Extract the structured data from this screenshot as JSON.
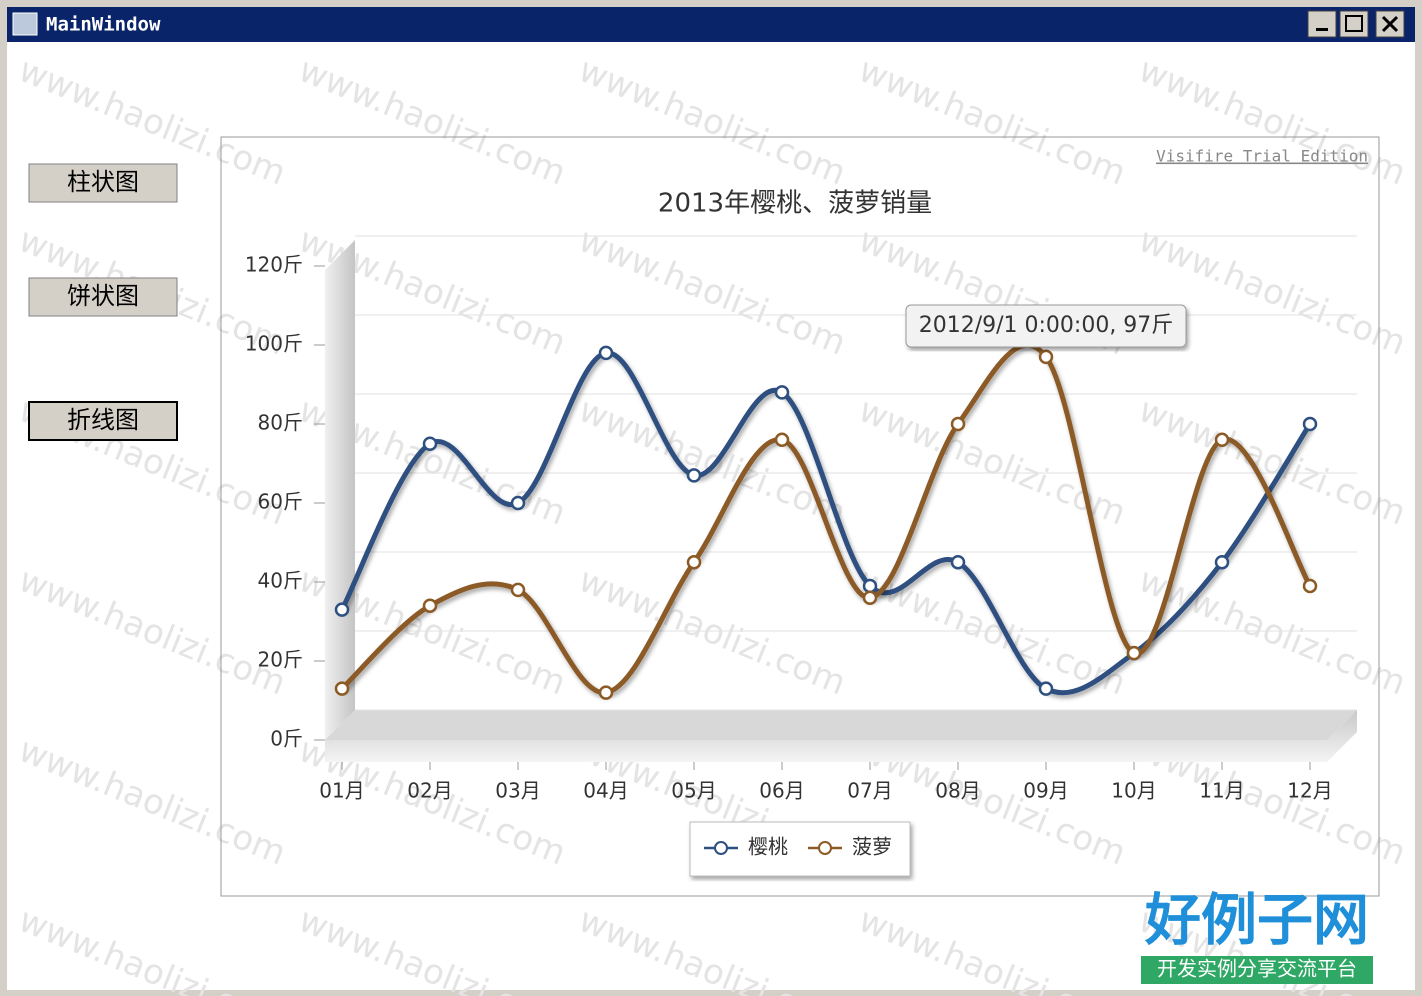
{
  "window": {
    "title": "MainWindow"
  },
  "buttons": [
    "柱状图",
    "饼状图",
    "折线图"
  ],
  "watermark": "www.haolizi.com",
  "logo": {
    "title": "好例子网",
    "subtitle": "开发实例分享交流平台"
  },
  "chart_data": {
    "type": "line",
    "title": "2013年樱桃、菠萝销量",
    "trial_note": "Visifire Trial Edition",
    "tooltip": "2012/9/1 0:00:00, 97斤",
    "categories": [
      "01月",
      "02月",
      "03月",
      "04月",
      "05月",
      "06月",
      "07月",
      "08月",
      "09月",
      "10月",
      "11月",
      "12月"
    ],
    "series": [
      {
        "name": "樱桃",
        "color": "#2e5080",
        "values": [
          33,
          75,
          60,
          98,
          67,
          88,
          39,
          45,
          13,
          22,
          45,
          80
        ]
      },
      {
        "name": "菠萝",
        "color": "#8b5a25",
        "values": [
          13,
          34,
          38,
          12,
          45,
          76,
          36,
          80,
          97,
          22,
          76,
          39
        ]
      }
    ],
    "ylim": [
      0,
      120
    ],
    "yticks": [
      {
        "value": 0,
        "label": "0斤"
      },
      {
        "value": 20,
        "label": "20斤"
      },
      {
        "value": 40,
        "label": "40斤"
      },
      {
        "value": 60,
        "label": "60斤"
      },
      {
        "value": 80,
        "label": "80斤"
      },
      {
        "value": 100,
        "label": "100斤"
      },
      {
        "value": 120,
        "label": "120斤"
      }
    ],
    "grid": true,
    "legend": "bottom"
  }
}
